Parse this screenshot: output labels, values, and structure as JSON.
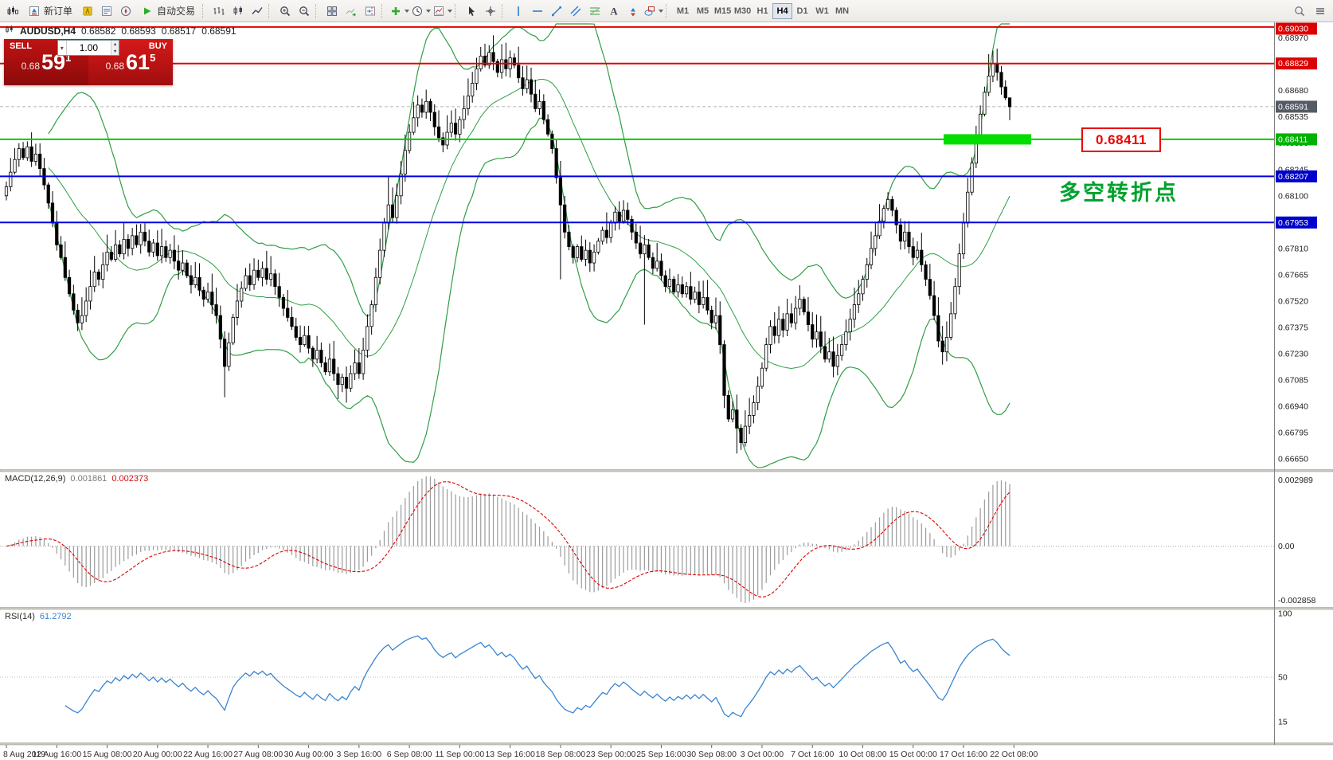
{
  "toolbar": {
    "groups": [
      {
        "items": [
          {
            "name": "new-chart",
            "icon": "candle-chart"
          },
          {
            "name": "new-order",
            "icon": "new-order",
            "label": "新订单"
          },
          {
            "name": "metaeditor",
            "icon": "metaeditor"
          },
          {
            "name": "market-watch",
            "icon": "market-watch"
          },
          {
            "name": "navigator",
            "icon": "navigator"
          },
          {
            "name": "autotrading",
            "icon": "play",
            "label": "自动交易"
          }
        ]
      },
      {
        "items": [
          {
            "name": "chart-bars",
            "icon": "bars"
          },
          {
            "name": "chart-candles",
            "icon": "candles"
          },
          {
            "name": "chart-line",
            "icon": "line"
          }
        ]
      },
      {
        "items": [
          {
            "name": "zoom-in",
            "icon": "zoom-in"
          },
          {
            "name": "zoom-out",
            "icon": "zoom-out"
          }
        ]
      },
      {
        "items": [
          {
            "name": "tile-windows",
            "icon": "tile"
          },
          {
            "name": "auto-scroll",
            "icon": "auto-scroll"
          },
          {
            "name": "chart-shift",
            "icon": "chart-shift"
          }
        ]
      },
      {
        "items": [
          {
            "name": "indicators",
            "icon": "indicators",
            "dropdown": true
          },
          {
            "name": "periods",
            "icon": "clock",
            "dropdown": true
          },
          {
            "name": "templates",
            "icon": "template",
            "dropdown": true
          }
        ]
      },
      {
        "items": [
          {
            "name": "cursor",
            "icon": "cursor"
          },
          {
            "name": "crosshair",
            "icon": "crosshair"
          }
        ]
      },
      {
        "items": [
          {
            "name": "vertical-line",
            "icon": "vline"
          },
          {
            "name": "horizontal-line",
            "icon": "hline"
          },
          {
            "name": "trendline",
            "icon": "trendline"
          },
          {
            "name": "equidistant-channel",
            "icon": "channel"
          },
          {
            "name": "fibonacci",
            "icon": "fibo"
          },
          {
            "name": "text",
            "icon": "text"
          },
          {
            "name": "arrow-objects",
            "icon": "arrows"
          },
          {
            "name": "shapes",
            "icon": "shapes",
            "dropdown": true
          }
        ]
      }
    ],
    "timeframes": [
      "M1",
      "M5",
      "M15",
      "M30",
      "H1",
      "H4",
      "D1",
      "W1",
      "MN"
    ],
    "active_timeframe": "H4",
    "right_items": [
      {
        "name": "search",
        "icon": "magnifier"
      },
      {
        "name": "window-list",
        "icon": "menu"
      }
    ]
  },
  "chart": {
    "title": {
      "symbol": "AUDUSD,H4",
      "open": "0.68582",
      "high": "0.68593",
      "low": "0.68517",
      "close": "0.68591"
    },
    "trade_widget": {
      "sell_label": "SELL",
      "buy_label": "BUY",
      "volume": "1.00",
      "sell_small": "0.68",
      "sell_big": "59",
      "sell_sup": "1",
      "buy_small": "0.68",
      "buy_big": "61",
      "buy_sup": "5"
    }
  },
  "chart_data": {
    "type": "candlestick",
    "symbol": "AUDUSD",
    "timeframe": "H4",
    "price_panel": {
      "ylim": [
        0.66589,
        0.69056
      ],
      "first_open": 0.681,
      "closes": [
        0.6815,
        0.6823,
        0.683,
        0.6836,
        0.6831,
        0.6837,
        0.6829,
        0.6833,
        0.6825,
        0.6816,
        0.6806,
        0.6795,
        0.6783,
        0.6776,
        0.6765,
        0.6756,
        0.6747,
        0.674,
        0.6744,
        0.6752,
        0.676,
        0.6768,
        0.6764,
        0.6772,
        0.6779,
        0.6775,
        0.6783,
        0.6778,
        0.6786,
        0.6781,
        0.6788,
        0.6783,
        0.679,
        0.6785,
        0.6779,
        0.6784,
        0.6777,
        0.6782,
        0.6776,
        0.678,
        0.6774,
        0.6769,
        0.6773,
        0.6766,
        0.6761,
        0.6765,
        0.6758,
        0.6753,
        0.6757,
        0.675,
        0.6744,
        0.6731,
        0.6716,
        0.6729,
        0.6743,
        0.6752,
        0.6759,
        0.6766,
        0.6761,
        0.6769,
        0.6765,
        0.677,
        0.6764,
        0.6767,
        0.676,
        0.6754,
        0.6748,
        0.6743,
        0.6738,
        0.6732,
        0.6728,
        0.6733,
        0.6726,
        0.672,
        0.6725,
        0.6718,
        0.6713,
        0.672,
        0.6712,
        0.6706,
        0.671,
        0.6704,
        0.6712,
        0.6718,
        0.6712,
        0.6725,
        0.6738,
        0.675,
        0.6765,
        0.678,
        0.6795,
        0.6805,
        0.6798,
        0.681,
        0.6822,
        0.6835,
        0.6845,
        0.6853,
        0.686,
        0.6856,
        0.6862,
        0.6856,
        0.6848,
        0.6842,
        0.6838,
        0.6845,
        0.685,
        0.6844,
        0.6852,
        0.6858,
        0.6865,
        0.6872,
        0.688,
        0.6887,
        0.6882,
        0.6889,
        0.6884,
        0.6878,
        0.6885,
        0.688,
        0.6886,
        0.6882,
        0.6875,
        0.6869,
        0.6874,
        0.6866,
        0.6858,
        0.6862,
        0.6852,
        0.6844,
        0.6836,
        0.682,
        0.6805,
        0.679,
        0.6782,
        0.6776,
        0.6782,
        0.6775,
        0.678,
        0.6773,
        0.6779,
        0.6785,
        0.6791,
        0.6787,
        0.6795,
        0.6801,
        0.6796,
        0.6802,
        0.6797,
        0.679,
        0.6784,
        0.6778,
        0.6783,
        0.6776,
        0.677,
        0.6774,
        0.6766,
        0.676,
        0.6764,
        0.6757,
        0.6761,
        0.6756,
        0.676,
        0.6753,
        0.6757,
        0.675,
        0.6754,
        0.6747,
        0.674,
        0.6744,
        0.6728,
        0.67,
        0.6687,
        0.6692,
        0.6682,
        0.6674,
        0.6683,
        0.6689,
        0.6696,
        0.6705,
        0.6715,
        0.6728,
        0.6738,
        0.6733,
        0.6742,
        0.6736,
        0.6745,
        0.674,
        0.6748,
        0.6753,
        0.6746,
        0.6739,
        0.6731,
        0.6735,
        0.6727,
        0.672,
        0.6724,
        0.6716,
        0.6722,
        0.6728,
        0.6735,
        0.6742,
        0.675,
        0.6756,
        0.6764,
        0.6772,
        0.6781,
        0.6788,
        0.6796,
        0.6803,
        0.6808,
        0.6802,
        0.6794,
        0.6785,
        0.679,
        0.6782,
        0.6776,
        0.678,
        0.6772,
        0.6764,
        0.6755,
        0.6744,
        0.673,
        0.6724,
        0.6732,
        0.6745,
        0.676,
        0.6778,
        0.6795,
        0.6812,
        0.6828,
        0.6842,
        0.6855,
        0.6867,
        0.6876,
        0.6883,
        0.6878,
        0.687,
        0.6864,
        0.68591
      ],
      "spikes": {
        "3": {
          "high": 0.6839
        },
        "5": {
          "high": 0.684
        },
        "17": {
          "low": 0.67355
        },
        "52": {
          "low": 0.6699
        },
        "79": {
          "low": 0.6698
        },
        "81": {
          "low": 0.6696
        },
        "91": {
          "high": 0.6821
        },
        "113": {
          "high": 0.6892
        },
        "115": {
          "high": 0.6893
        },
        "132": {
          "low": 0.6764
        },
        "152": {
          "low": 0.6739
        },
        "171": {
          "low": 0.6693
        },
        "174": {
          "low": 0.6668
        },
        "175": {
          "low": 0.667
        },
        "197": {
          "low": 0.671
        },
        "210": {
          "high": 0.6812
        },
        "223": {
          "low": 0.6717
        },
        "234": {
          "high": 0.6888
        },
        "235": {
          "high": 0.689
        },
        "239": {
          "high": 0.68593,
          "low": 0.68517
        }
      },
      "bollinger": {
        "period": 20,
        "deviation": 2,
        "color": "#2f9e44"
      },
      "candle_colors": {
        "bull_fill": "#ffffff",
        "bear_fill": "#000000",
        "outline": "#000000"
      },
      "ticks": {
        "start": 0.6897,
        "step": 0.00145,
        "count": 17
      },
      "hlines": [
        {
          "price": 0.6903,
          "label": "0.69030",
          "color": "#e00000",
          "badge": "#dd0000"
        },
        {
          "price": 0.68829,
          "label": "0.68829",
          "color": "#e00000",
          "badge": "#dd0000"
        },
        {
          "price": 0.68411,
          "label": "0.68411",
          "color": "#00cc00",
          "badge": "#00b300"
        },
        {
          "price": 0.68207,
          "label": "0.68207",
          "color": "#0000e0",
          "badge": "#0000cc"
        },
        {
          "price": 0.67953,
          "label": "0.67953",
          "color": "#0000e0",
          "badge": "#0000cc"
        }
      ],
      "bid": {
        "price": 0.68591,
        "label": "0.68591",
        "badge": "#545b64"
      },
      "highlight_box": {
        "price": 0.68411,
        "color": "#00dd00"
      },
      "price_label_box": {
        "text": "0.68411",
        "color": "#ec0000"
      },
      "annotation": {
        "text": "多空转折点",
        "color": "#00a22e"
      }
    },
    "macd_panel": {
      "name": "MACD",
      "params": "(12,26,9)",
      "fast": 12,
      "slow": 26,
      "signal": 9,
      "value_main": "0.001861",
      "value_signal": "0.002373",
      "scale_top": "0.002989",
      "scale_zero": "0.00",
      "scale_bottom": "-0.002858",
      "histogram_color": "#9b9b9b",
      "signal_color": "#dd0000"
    },
    "rsi_panel": {
      "name": "RSI",
      "params": "(14)",
      "period": 14,
      "value": "61.2792",
      "line_color": "#3a85d0",
      "levels": [
        {
          "value": 100,
          "label": "100"
        },
        {
          "value": 50,
          "label": "50",
          "dotted": true
        },
        {
          "value": 15,
          "label": "15"
        }
      ]
    },
    "time_axis": {
      "labels": [
        "8 Aug 2019",
        "12 Aug 16:00",
        "15 Aug 08:00",
        "20 Aug 00:00",
        "22 Aug 16:00",
        "27 Aug 08:00",
        "30 Aug 00:00",
        "3 Sep 16:00",
        "6 Sep 08:00",
        "11 Sep 00:00",
        "13 Sep 16:00",
        "18 Sep 08:00",
        "23 Sep 00:00",
        "25 Sep 16:00",
        "30 Sep 08:00",
        "3 Oct 00:00",
        "7 Oct 16:00",
        "10 Oct 08:00",
        "15 Oct 00:00",
        "17 Oct 16:00",
        "22 Oct 08:00"
      ],
      "bars_per_label": 12
    }
  }
}
